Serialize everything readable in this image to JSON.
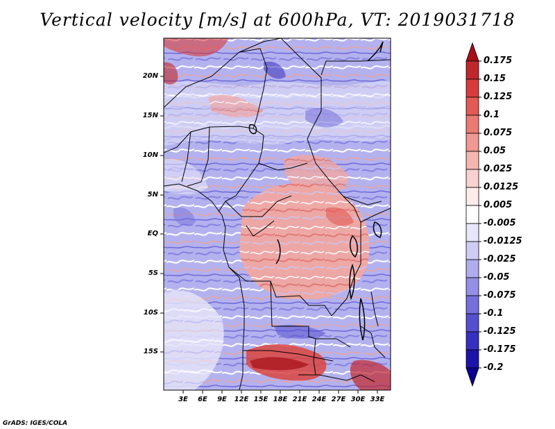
{
  "title": "Vertical velocity [m/s] at 600hPa, VT: 2019031718",
  "credit": "GrADS: IGES/COLA",
  "map": {
    "lat_ticks": [
      "20N",
      "15N",
      "10N",
      "5N",
      "EQ",
      "5S",
      "10S",
      "15S"
    ],
    "lon_ticks": [
      "3E",
      "6E",
      "9E",
      "12E",
      "15E",
      "18E",
      "21E",
      "24E",
      "27E",
      "30E",
      "33E"
    ]
  },
  "colorbar": {
    "levels": [
      "0.175",
      "0.15",
      "0.125",
      "0.1",
      "0.075",
      "0.05",
      "0.025",
      "0.0125",
      "0.005",
      "-0.005",
      "-0.0125",
      "-0.025",
      "-0.05",
      "-0.075",
      "-0.1",
      "-0.125",
      "-0.175",
      "-0.2"
    ],
    "colors": [
      "#a50f15",
      "#c0272d",
      "#d73c3c",
      "#e25a55",
      "#eb7a74",
      "#f09893",
      "#f5b5b1",
      "#f9d2cf",
      "#fdeceb",
      "#ffffff",
      "#e7e6fa",
      "#cfcdf5",
      "#b0adee",
      "#9490e6",
      "#7570dc",
      "#5550d0",
      "#3530c0",
      "#1c13a8",
      "#0c0090"
    ]
  }
}
